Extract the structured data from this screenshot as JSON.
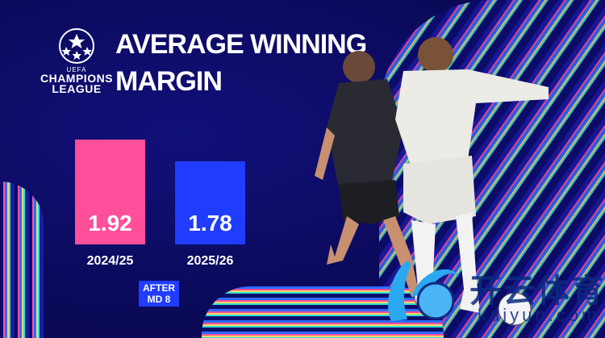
{
  "brand": {
    "logo_text_uefa": "UEFA",
    "logo_text_line1": "CHAMPIONS",
    "logo_text_line2": "LEAGUE"
  },
  "colors": {
    "background": "#0b0a5c",
    "bar_2024": "#ff4f9a",
    "bar_2025": "#1f3cff",
    "text": "#ffffff"
  },
  "chart_data": {
    "type": "bar",
    "title": "AVERAGE WINNING MARGIN",
    "title_line1": "AVERAGE WINNING",
    "title_line2": "MARGIN",
    "categories": [
      "2024/25",
      "2025/26"
    ],
    "values": [
      1.92,
      1.78
    ],
    "value_labels": [
      "1.92",
      "1.78"
    ],
    "bar_colors": [
      "#ff4f9a",
      "#1f3cff"
    ],
    "annotation_line1": "AFTER",
    "annotation_line2": "MD 8",
    "grid": false,
    "legend": "none"
  },
  "watermark": {
    "chinese": "开云体育",
    "latin": "kaiyun.com"
  }
}
